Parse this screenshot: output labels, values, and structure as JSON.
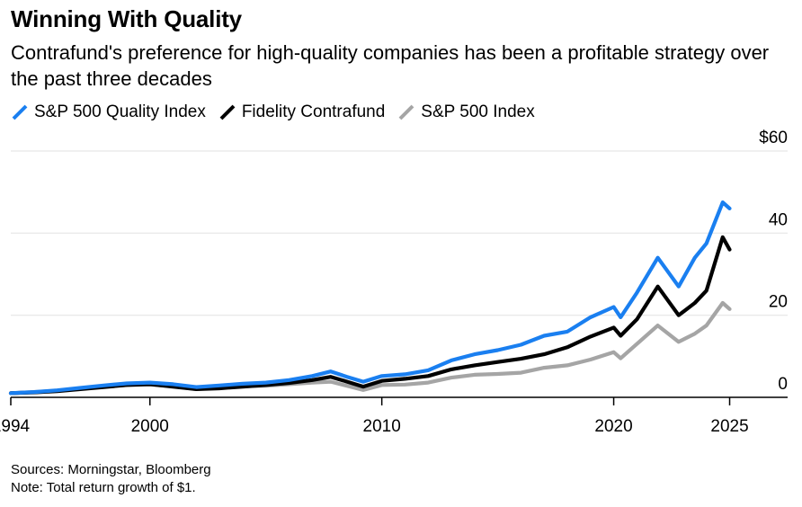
{
  "header": {
    "title": "Winning With Quality",
    "subtitle": "Contrafund's preference for high-quality companies has been a profitable strategy over the past three decades"
  },
  "legend": [
    {
      "label": "S&P 500 Quality Index",
      "color": "#1a7ff0"
    },
    {
      "label": "Fidelity Contrafund",
      "color": "#000000"
    },
    {
      "label": "S&P 500 Index",
      "color": "#a5a5a5"
    }
  ],
  "footer": {
    "sources": "Sources: Morningstar, Bloomberg",
    "note": "Note: Total return growth of $1."
  },
  "chart_data": {
    "type": "line",
    "title": "Winning With Quality",
    "xlabel": "",
    "ylabel": "",
    "xlim": [
      1994,
      2027.5
    ],
    "ylim": [
      0,
      60
    ],
    "x_ticks": [
      1994,
      2000,
      2010,
      2020,
      2025
    ],
    "y_ticks": [
      0,
      20,
      40,
      60
    ],
    "y_tick_labels": [
      "0",
      "20",
      "40",
      "$60"
    ],
    "grid": "horizontal",
    "legend_position": "top-left",
    "series": [
      {
        "name": "S&P 500 Quality Index",
        "color": "#1a7ff0",
        "x": [
          1994,
          1995,
          1996,
          1997,
          1998,
          1999,
          2000,
          2001,
          2002,
          2003,
          2004,
          2005,
          2006,
          2007,
          2007.8,
          2008.5,
          2009.2,
          2010,
          2011,
          2012,
          2013,
          2014,
          2015,
          2016,
          2017,
          2018,
          2019,
          2020,
          2020.3,
          2021,
          2021.9,
          2022.8,
          2023.5,
          2024,
          2024.7,
          2025
        ],
        "values": [
          1,
          1.3,
          1.7,
          2.3,
          2.9,
          3.4,
          3.6,
          3.2,
          2.5,
          2.9,
          3.3,
          3.6,
          4.2,
          5.2,
          6.3,
          5.0,
          3.8,
          5.2,
          5.6,
          6.6,
          9.0,
          10.5,
          11.5,
          12.8,
          15.0,
          16.0,
          19.5,
          22.0,
          19.5,
          25.5,
          34.0,
          27.0,
          34.0,
          37.5,
          47.5,
          46.0
        ]
      },
      {
        "name": "Fidelity Contrafund",
        "color": "#000000",
        "x": [
          1994,
          1995,
          1996,
          1997,
          1998,
          1999,
          2000,
          2001,
          2002,
          2003,
          2004,
          2005,
          2006,
          2007,
          2007.8,
          2008.5,
          2009.2,
          2010,
          2011,
          2012,
          2013,
          2014,
          2015,
          2016,
          2017,
          2018,
          2019,
          2020,
          2020.3,
          2021,
          2021.9,
          2022.8,
          2023.5,
          2024,
          2024.7,
          2025
        ],
        "values": [
          1,
          1.2,
          1.5,
          2.0,
          2.5,
          3.0,
          3.2,
          2.6,
          2.0,
          2.2,
          2.6,
          3.0,
          3.5,
          4.2,
          5.0,
          3.8,
          2.6,
          4.0,
          4.5,
          5.2,
          6.8,
          7.8,
          8.6,
          9.4,
          10.5,
          12.2,
          14.8,
          17.0,
          15.0,
          19.0,
          27.0,
          20.0,
          23.0,
          26.0,
          39.0,
          36.0
        ]
      },
      {
        "name": "S&P 500 Index",
        "color": "#a5a5a5",
        "x": [
          1994,
          1995,
          1996,
          1997,
          1998,
          1999,
          2000,
          2001,
          2002,
          2003,
          2004,
          2005,
          2006,
          2007,
          2007.8,
          2008.5,
          2009.2,
          2010,
          2011,
          2012,
          2013,
          2014,
          2015,
          2016,
          2017,
          2018,
          2019,
          2020,
          2020.3,
          2021,
          2021.9,
          2022.8,
          2023.5,
          2024,
          2024.7,
          2025
        ],
        "values": [
          1,
          1.3,
          1.6,
          2.1,
          2.6,
          3.0,
          3.1,
          2.7,
          2.0,
          2.4,
          2.7,
          2.8,
          3.2,
          3.6,
          3.8,
          2.8,
          1.8,
          3.0,
          3.1,
          3.6,
          4.8,
          5.5,
          5.7,
          6.0,
          7.2,
          7.8,
          9.2,
          11.0,
          9.5,
          13.0,
          17.5,
          13.5,
          15.5,
          17.5,
          23.0,
          21.5
        ]
      }
    ]
  }
}
